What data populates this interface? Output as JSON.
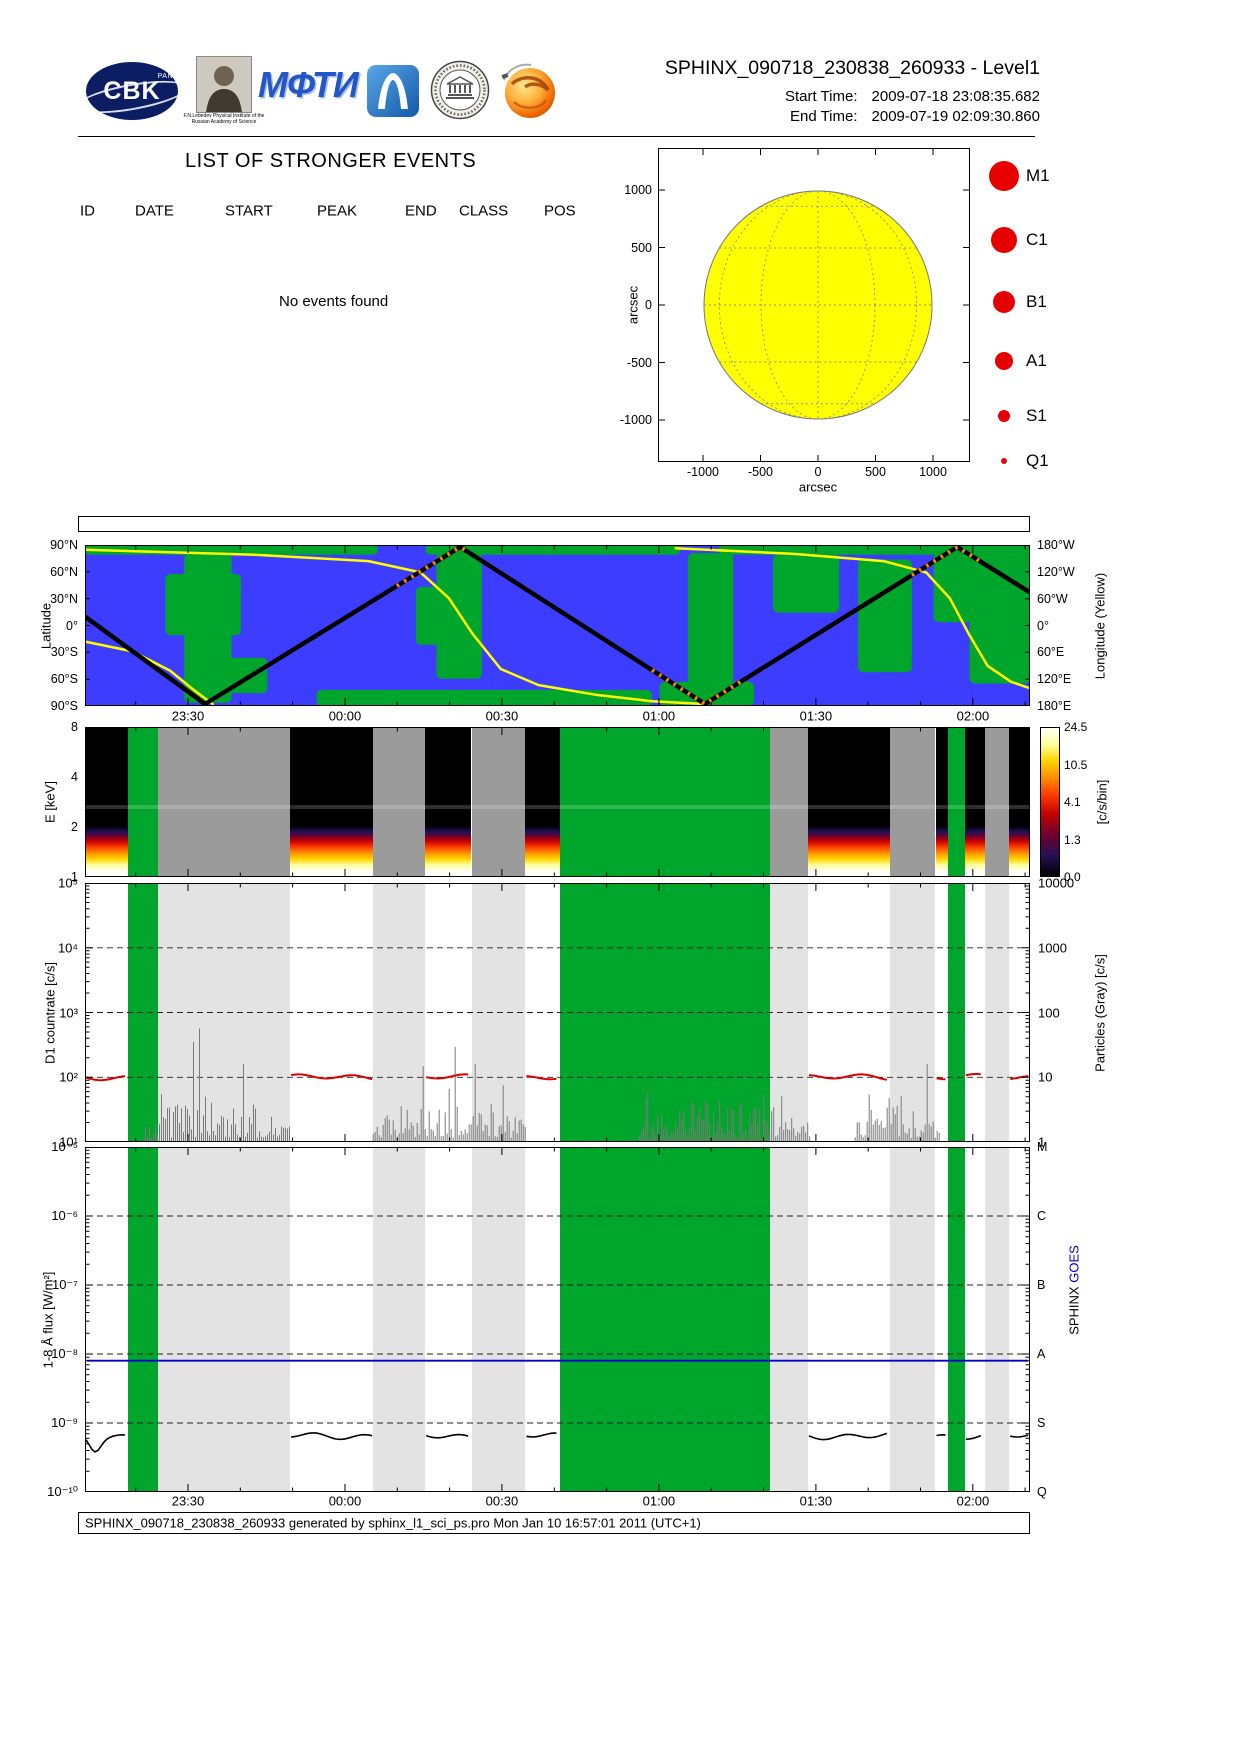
{
  "header": {
    "title": "SPHINX_090718_230838_260933 - Level1",
    "start_time_label": "Start Time:",
    "start_time": "2009-07-18  23:08:35.682",
    "end_time_label": "End Time:",
    "end_time": "2009-07-19  02:09:30.860",
    "logos": {
      "cbk_text": "CBK",
      "cbk_sub": "PAN",
      "lebedev_caption": "F.N.Lebedev Physical Institute of the Russian Academy of Science",
      "mipt_text": "МФТИ"
    }
  },
  "events_panel": {
    "heading": "LIST OF STRONGER EVENTS",
    "columns": [
      "ID",
      "DATE",
      "START",
      "PEAK",
      "END",
      "CLASS",
      "POS"
    ],
    "empty_message": "No events found"
  },
  "time_axis": {
    "labels": [
      "23:30",
      "00:00",
      "00:30",
      "01:00",
      "01:30",
      "02:00"
    ],
    "fractions": [
      0.109,
      0.2751,
      0.4412,
      0.6073,
      0.7734,
      0.9396
    ]
  },
  "timeline_segments": [
    {
      "start": 0.0,
      "end": 0.045,
      "mode": "sun"
    },
    {
      "start": 0.045,
      "end": 0.077,
      "mode": "radiation"
    },
    {
      "start": 0.077,
      "end": 0.217,
      "mode": "night"
    },
    {
      "start": 0.217,
      "end": 0.305,
      "mode": "sun"
    },
    {
      "start": 0.305,
      "end": 0.36,
      "mode": "night"
    },
    {
      "start": 0.36,
      "end": 0.409,
      "mode": "sun"
    },
    {
      "start": 0.409,
      "end": 0.466,
      "mode": "night"
    },
    {
      "start": 0.466,
      "end": 0.503,
      "mode": "sun"
    },
    {
      "start": 0.503,
      "end": 0.725,
      "mode": "radiation"
    },
    {
      "start": 0.725,
      "end": 0.765,
      "mode": "night"
    },
    {
      "start": 0.765,
      "end": 0.852,
      "mode": "sun"
    },
    {
      "start": 0.852,
      "end": 0.9,
      "mode": "night"
    },
    {
      "start": 0.9,
      "end": 0.913,
      "mode": "sun"
    },
    {
      "start": 0.913,
      "end": 0.931,
      "mode": "radiation"
    },
    {
      "start": 0.931,
      "end": 0.952,
      "mode": "sun"
    },
    {
      "start": 0.952,
      "end": 0.978,
      "mode": "night"
    },
    {
      "start": 0.978,
      "end": 1.0,
      "mode": "sun"
    }
  ],
  "particle_regions": [
    [
      0.064,
      0.217
    ],
    [
      0.305,
      0.466
    ],
    [
      0.587,
      0.767
    ],
    [
      0.815,
      0.905
    ]
  ],
  "chart_data": [
    {
      "id": "solar_disk",
      "type": "scatter",
      "title": "",
      "xlabel": "arcsec",
      "ylabel": "arcsec",
      "xticks": [
        -1000,
        -500,
        0,
        500,
        1000
      ],
      "yticks": [
        1000,
        500,
        0,
        -500,
        -1000
      ],
      "disk_radius_arcsec": 960,
      "disk_color": "#ffff00",
      "points": [],
      "note": "No events found - no flare positions plotted",
      "legend": {
        "marker_color": "#e60000",
        "items": [
          {
            "label": "M1",
            "radius": 15
          },
          {
            "label": "C1",
            "radius": 13
          },
          {
            "label": "B1",
            "radius": 11
          },
          {
            "label": "A1",
            "radius": 9
          },
          {
            "label": "S1",
            "radius": 6
          },
          {
            "label": "Q1",
            "radius": 3
          }
        ]
      }
    },
    {
      "id": "ground_track",
      "type": "line",
      "ylabel": "Latitude",
      "right_axis_label": "Longitude (Yellow)",
      "lat_ticks": [
        "90°N",
        "60°N",
        "30°N",
        "0°",
        "30°S",
        "60°S",
        "90°S"
      ],
      "lon_ticks": [
        "180°W",
        "120°W",
        "60°W",
        "0°",
        "60°E",
        "120°E",
        "180°E"
      ],
      "ocean_color": "#3d3dff",
      "land_color": "#00a62b",
      "track_color": "#000000",
      "longitude_color": "#ffff00",
      "track_lat_points": [
        [
          0,
          10
        ],
        [
          0.127,
          -90
        ],
        [
          0.397,
          90
        ],
        [
          0.656,
          -90
        ],
        [
          0.923,
          90
        ],
        [
          1,
          37
        ]
      ],
      "longitude_curves": [
        [
          [
            0,
            0.6
          ],
          [
            0.05,
            0.66
          ],
          [
            0.09,
            0.78
          ],
          [
            0.115,
            0.9
          ],
          [
            0.135,
            1.0
          ]
        ],
        [
          [
            0,
            0.03
          ],
          [
            0.18,
            0.06
          ],
          [
            0.3,
            0.1
          ],
          [
            0.355,
            0.17
          ],
          [
            0.385,
            0.33
          ],
          [
            0.41,
            0.55
          ],
          [
            0.44,
            0.77
          ],
          [
            0.48,
            0.87
          ],
          [
            0.54,
            0.93
          ],
          [
            0.6,
            0.97
          ],
          [
            0.655,
            1.0
          ]
        ],
        [
          [
            0.625,
            0.02
          ],
          [
            0.75,
            0.055
          ],
          [
            0.845,
            0.1
          ],
          [
            0.89,
            0.17
          ],
          [
            0.915,
            0.33
          ],
          [
            0.935,
            0.55
          ],
          [
            0.955,
            0.75
          ],
          [
            0.98,
            0.85
          ],
          [
            1.0,
            0.89
          ]
        ]
      ],
      "belt_ranges": [
        [
          0.33,
          0.405
        ],
        [
          0.6,
          0.7
        ],
        [
          0.875,
          0.955
        ]
      ],
      "land_patches": [
        [
          0,
          0,
          0.31,
          0.06
        ],
        [
          0.36,
          0,
          0.27,
          0.06
        ],
        [
          0.67,
          0,
          0.33,
          0.06
        ],
        [
          0.105,
          0.05,
          0.05,
          0.93
        ],
        [
          0.085,
          0.18,
          0.08,
          0.38
        ],
        [
          0.148,
          0.7,
          0.045,
          0.22
        ],
        [
          0.372,
          0.05,
          0.048,
          0.78
        ],
        [
          0.35,
          0.26,
          0.032,
          0.36
        ],
        [
          0.245,
          0.9,
          0.355,
          0.1
        ],
        [
          0.608,
          0.85,
          0.1,
          0.15
        ],
        [
          0.638,
          0.05,
          0.048,
          0.86
        ],
        [
          0.728,
          0.06,
          0.07,
          0.36
        ],
        [
          0.818,
          0.09,
          0.057,
          0.7
        ],
        [
          0.898,
          0.04,
          0.102,
          0.44
        ],
        [
          0.936,
          0.46,
          0.064,
          0.4
        ]
      ]
    },
    {
      "id": "spectrogram",
      "type": "heatmap",
      "ylabel": "E [keV]",
      "yticks": [
        8,
        4,
        2,
        1
      ],
      "yscale": "log",
      "colorbar": {
        "label": "[c/s/bin]",
        "ticks": [
          24.5,
          10.5,
          4.1,
          1.3,
          0.0
        ]
      },
      "modes": {
        "sun": "solar spectra: bright 1-2 keV band, black above",
        "night": "gray - no solar data",
        "radiation": "green - radiation belt / SAA"
      }
    },
    {
      "id": "d1_countrate",
      "type": "line",
      "ylabel": "D1 countrate [c/s]",
      "yticks_labels": [
        "10⁵",
        "10⁴",
        "10³",
        "10²",
        "10¹"
      ],
      "ylim": [
        10,
        100000
      ],
      "right_axis": {
        "label": "Particles (Gray) [c/s]",
        "ticks": [
          "10000",
          "1000",
          "100",
          "10",
          "1"
        ],
        "lim": [
          1,
          10000
        ]
      },
      "grid": "dashed",
      "series": [
        {
          "name": "D1 countrate",
          "color": "#dd0000",
          "value": 100
        },
        {
          "name": "Particles",
          "color": "#7a7a7a",
          "style": "spikes",
          "range": [
            10,
            500
          ]
        }
      ]
    },
    {
      "id": "flux_1_8A",
      "type": "line",
      "ylabel": "1-8 Å flux [W/m²]",
      "yticks_labels": [
        "10⁻⁵",
        "10⁻⁶",
        "10⁻⁷",
        "10⁻⁸",
        "10⁻⁹",
        "10⁻¹⁰"
      ],
      "ylim": [
        1e-10,
        1e-05
      ],
      "right_class_labels": [
        "M",
        "C",
        "B",
        "A",
        "S",
        "Q"
      ],
      "right_axis_label": {
        "sphinx": "SPHINX",
        "goes": "GOES",
        "goes_color": "#0000cc"
      },
      "grid": "dashed",
      "series": [
        {
          "name": "GOES 1-8 Å",
          "color": "#0000cc",
          "value": 8e-09
        },
        {
          "name": "SPHINX 1-8 Å",
          "color": "#000000",
          "value": 6.5e-10
        }
      ]
    }
  ],
  "footer": {
    "text": "SPHINX_090718_230838_260933 generated by sphinx_l1_sci_ps.pro Mon Jan 10 16:57:01 2011 (UTC+1)"
  }
}
